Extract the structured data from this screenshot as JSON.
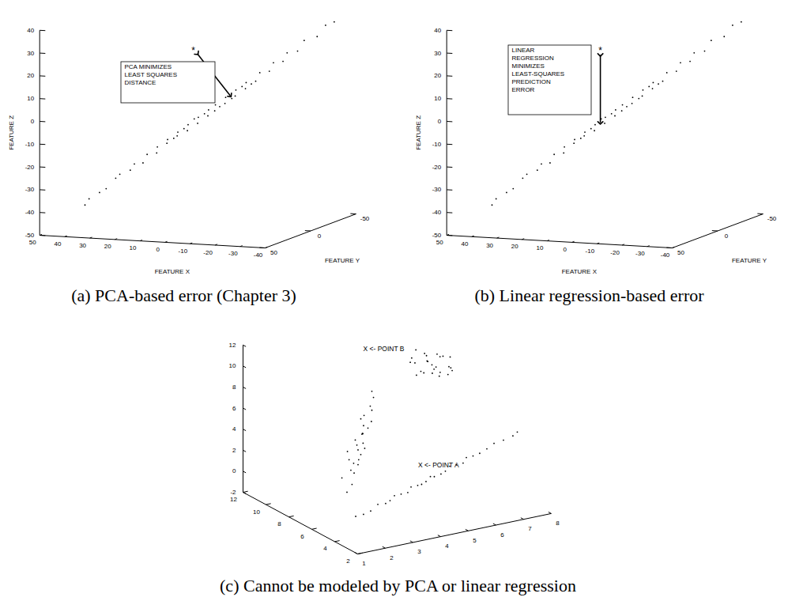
{
  "chart_data": [
    {
      "type": "pca",
      "title": "(a) PCA-based error (Chapter 3)",
      "annotation": [
        "PCA MINIMIZES",
        "LEAST SQUARES",
        "DISTANCE"
      ],
      "x_label": "FEATURE X",
      "y_label": "FEATURE Y",
      "z_label": "FEATURE Z",
      "xlim": [
        -40,
        50
      ],
      "ylim": [
        -50,
        50
      ],
      "zlim": [
        -50,
        40
      ],
      "xticks": [
        -40,
        -30,
        -20,
        -10,
        0,
        10,
        20,
        30,
        40,
        50
      ],
      "yticks": [
        -50,
        0,
        50
      ],
      "zticks": [
        -50,
        -40,
        -30,
        -20,
        -10,
        0,
        10,
        20,
        30,
        40
      ],
      "x": [
        37,
        35,
        33,
        30,
        28,
        26,
        24,
        22,
        20,
        18,
        16,
        15,
        13,
        12,
        10,
        9,
        7,
        6,
        4,
        3,
        1,
        0,
        -1,
        -2,
        -4,
        -5,
        -7,
        -8,
        -10,
        -11,
        -13,
        -15,
        -17,
        -19,
        -21,
        -23,
        -25,
        -28,
        -31,
        -34,
        -36,
        2,
        -3,
        8,
        -6,
        11,
        -12,
        5,
        -9
      ],
      "y": [
        36,
        37,
        31,
        32,
        27,
        28,
        22,
        23,
        19,
        20,
        15,
        17,
        12,
        14,
        9,
        11,
        6,
        8,
        3,
        5,
        0,
        2,
        -2,
        0,
        -5,
        -3,
        -8,
        -6,
        -11,
        -9,
        -14,
        -13,
        -18,
        -17,
        -22,
        -21,
        -27,
        -26,
        -32,
        -33,
        -37,
        1,
        -2,
        7,
        -7,
        10,
        -12,
        4,
        -10
      ],
      "z": [
        -38,
        -35,
        -33,
        -31,
        -27,
        -25,
        -24,
        -21,
        -21,
        -17,
        -17,
        -14,
        -13,
        -11,
        -10,
        -8,
        -8,
        -5,
        -5,
        -2,
        -2,
        1,
        0,
        3,
        3,
        6,
        6,
        9,
        9,
        12,
        12,
        16,
        16,
        20,
        20,
        24,
        24,
        29,
        30,
        35,
        36,
        -1,
        2,
        -7,
        5,
        -11,
        11,
        -3,
        10
      ],
      "outliers": [
        {
          "x": 5,
          "y": 5,
          "z": 28,
          "label": "*"
        }
      ]
    },
    {
      "type": "regression",
      "title": "(b) Linear regression-based error",
      "annotation": [
        "LINEAR",
        "REGRESSION",
        "MINIMIZES",
        "LEAST-SQUARES",
        "PREDICTION",
        "ERROR"
      ],
      "x_label": "FEATURE X",
      "y_label": "FEATURE Y",
      "z_label": "FEATURE Z",
      "xlim": [
        -40,
        50
      ],
      "ylim": [
        -50,
        50
      ],
      "zlim": [
        -50,
        40
      ],
      "xticks": [
        -40,
        -30,
        -20,
        -10,
        0,
        10,
        20,
        30,
        40,
        50
      ],
      "yticks": [
        -50,
        0,
        50
      ],
      "zticks": [
        -50,
        -40,
        -30,
        -20,
        -10,
        0,
        10,
        20,
        30,
        40
      ],
      "x": [
        37,
        35,
        33,
        30,
        28,
        26,
        24,
        22,
        20,
        18,
        16,
        15,
        13,
        12,
        10,
        9,
        7,
        6,
        4,
        3,
        1,
        0,
        -1,
        -2,
        -4,
        -5,
        -7,
        -8,
        -10,
        -11,
        -13,
        -15,
        -17,
        -19,
        -21,
        -23,
        -25,
        -28,
        -31,
        -34,
        -36,
        2,
        -3,
        8,
        -6,
        11,
        -12,
        5,
        -9
      ],
      "y": [
        36,
        37,
        31,
        32,
        27,
        28,
        22,
        23,
        19,
        20,
        15,
        17,
        12,
        14,
        9,
        11,
        6,
        8,
        3,
        5,
        0,
        2,
        -2,
        0,
        -5,
        -3,
        -8,
        -6,
        -11,
        -9,
        -14,
        -13,
        -18,
        -17,
        -22,
        -21,
        -27,
        -26,
        -32,
        -33,
        -37,
        1,
        -2,
        7,
        -7,
        10,
        -12,
        4,
        -10
      ],
      "z": [
        -38,
        -35,
        -33,
        -31,
        -27,
        -25,
        -24,
        -21,
        -21,
        -17,
        -17,
        -14,
        -13,
        -11,
        -10,
        -8,
        -8,
        -5,
        -5,
        -2,
        -2,
        1,
        0,
        3,
        3,
        6,
        6,
        9,
        9,
        12,
        12,
        16,
        16,
        20,
        20,
        24,
        24,
        29,
        30,
        35,
        36,
        -1,
        2,
        -7,
        5,
        -11,
        11,
        -3,
        10
      ],
      "outliers": [
        {
          "x": 5,
          "y": 5,
          "z": 28,
          "label": "*"
        }
      ]
    },
    {
      "type": "scatter",
      "title": "(c) Cannot be modeled by PCA or linear regression",
      "xlim": [
        2,
        12
      ],
      "ylim": [
        1,
        8
      ],
      "zlim": [
        -2,
        12
      ],
      "xticks": [
        2,
        4,
        6,
        8,
        10,
        12
      ],
      "yticks": [
        1,
        2,
        3,
        4,
        5,
        6,
        7,
        8
      ],
      "zticks": [
        -2,
        0,
        2,
        4,
        6,
        8,
        10,
        12
      ],
      "x": [
        4.1,
        3.9,
        4.0,
        4.1,
        3.9,
        4.0,
        4.1,
        4.0,
        3.9,
        4.1,
        4.0,
        3.9,
        4.0,
        4.1,
        4.0,
        3.9,
        4.0,
        4.1,
        4.0,
        3.9,
        4.1,
        4.0,
        3.9,
        4.0,
        4.1,
        4.0,
        3.9,
        4.0,
        8.0,
        7.8,
        8.2,
        8.1,
        7.9,
        8.0,
        8.3,
        7.7,
        8.0,
        8.2,
        7.9,
        8.1,
        7.8,
        8.0,
        8.3,
        7.9,
        8.1,
        8.0,
        7.8,
        8.2,
        8.0,
        7.9,
        8.1,
        8.0,
        8.0,
        7.9,
        8.1,
        8.0,
        10.0,
        9.0,
        11.0,
        10.5,
        9.5,
        10.2,
        9.8,
        11.2,
        8.8,
        10.4,
        9.6,
        10.8,
        9.2,
        10.1,
        9.9,
        11.4,
        8.6,
        10.3,
        9.7,
        10.6,
        9.4,
        10.0,
        10.0,
        11.0,
        9.0
      ],
      "y": [
        1.8,
        2.0,
        2.3,
        2.6,
        2.8,
        3.0,
        3.2,
        3.4,
        3.6,
        3.8,
        4.0,
        4.1,
        4.3,
        4.5,
        4.6,
        4.8,
        5.0,
        5.2,
        5.4,
        5.6,
        5.8,
        6.0,
        6.2,
        6.5,
        6.8,
        7.1,
        7.4,
        7.6,
        3.1,
        3.2,
        3.0,
        3.4,
        3.2,
        3.5,
        3.3,
        3.4,
        3.6,
        3.2,
        3.7,
        3.5,
        3.6,
        3.4,
        3.8,
        3.6,
        3.9,
        3.7,
        3.9,
        3.8,
        4.0,
        3.9,
        4.1,
        4.0,
        3.5,
        3.3,
        3.7,
        3.6,
        7.0,
        7.2,
        6.8,
        7.5,
        6.5,
        6.3,
        7.6,
        7.3,
        6.8,
        6.9,
        7.1,
        6.6,
        7.4,
        7.7,
        6.4,
        7.0,
        7.0,
        7.2,
        6.7,
        7.1,
        6.9,
        7.4,
        6.6,
        7.6,
        6.6
      ],
      "z": [
        -0.1,
        0.1,
        0.2,
        0.6,
        0.7,
        0.8,
        1.1,
        1.2,
        1.3,
        1.6,
        1.7,
        1.8,
        1.9,
        2.2,
        2.2,
        2.4,
        2.5,
        2.8,
        2.9,
        3.0,
        3.3,
        3.4,
        3.6,
        3.8,
        4.1,
        4.3,
        4.6,
        4.8,
        -0.8,
        0.0,
        0.5,
        0.8,
        1.3,
        1.6,
        2.0,
        2.3,
        2.5,
        2.9,
        3.1,
        3.4,
        3.7,
        4.0,
        4.2,
        4.5,
        4.8,
        5.2,
        5.6,
        6.0,
        6.5,
        7.0,
        7.6,
        8.3,
        3.0,
        1.9,
        4.4,
        5.9,
        8.0,
        8.3,
        7.7,
        8.2,
        7.8,
        8.5,
        7.5,
        8.0,
        8.1,
        8.9,
        7.1,
        8.4,
        7.7,
        8.3,
        7.4,
        8.6,
        7.9,
        7.3,
        8.7,
        7.9,
        8.2,
        8.6,
        7.6,
        8.1,
        8.0
      ],
      "outliers": [
        {
          "x": 4,
          "y": 4.1,
          "z": 3.6,
          "label": "X <- POINT A"
        },
        {
          "x": 10,
          "y": 4.6,
          "z": 10.8,
          "label": "X <- POINT B"
        }
      ]
    }
  ]
}
